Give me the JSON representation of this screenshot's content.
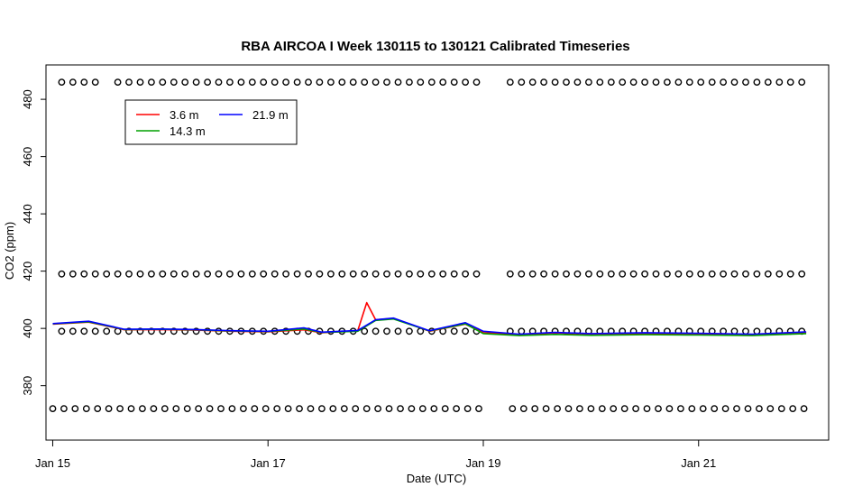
{
  "chart_data": {
    "type": "line",
    "title": "RBA AIRCOA I  Week 130115 to 130121  Calibrated Timeseries",
    "xlabel": "Date (UTC)",
    "ylabel": "CO2 (ppm)",
    "x_ticks": [
      "Jan 15",
      "Jan 17",
      "Jan 19",
      "Jan 21"
    ],
    "y_ticks": [
      "380",
      "400",
      "420",
      "440",
      "460",
      "480"
    ],
    "xlim": [
      "2013-01-14 22:30",
      "2013-01-22 05:00"
    ],
    "ylim": [
      361,
      492
    ],
    "grid": false,
    "legend_position": "top-left",
    "series": [
      {
        "name": "3.6 m",
        "color": "#ff0000",
        "x": [
          "2013-01-15 00:00",
          "2013-01-15 08:00",
          "2013-01-15 16:00",
          "2013-01-16 00:00",
          "2013-01-16 08:00",
          "2013-01-16 16:00",
          "2013-01-17 00:00",
          "2013-01-17 08:00",
          "2013-01-17 12:00",
          "2013-01-17 20:00",
          "2013-01-17 22:00",
          "2013-01-18 00:00",
          "2013-01-18 04:00",
          "2013-01-18 12:00",
          "2013-01-18 20:00",
          "2013-01-19 00:00",
          "2013-01-19 08:00",
          "2013-01-19 16:00",
          "2013-01-20 00:00",
          "2013-01-20 12:00",
          "2013-01-21 00:00",
          "2013-01-21 12:00",
          "2013-01-22 00:00"
        ],
        "values": [
          401.5,
          402.2,
          399.5,
          399.6,
          399.4,
          399.0,
          398.8,
          399.5,
          398.5,
          399.2,
          409.0,
          403.0,
          403.5,
          399.0,
          401.5,
          398.5,
          397.8,
          398.4,
          398.0,
          398.3,
          398.1,
          397.9,
          398.6
        ]
      },
      {
        "name": "14.3 m",
        "color": "#00a000",
        "x": [
          "2013-01-15 00:00",
          "2013-01-15 08:00",
          "2013-01-15 16:00",
          "2013-01-16 00:00",
          "2013-01-16 08:00",
          "2013-01-16 16:00",
          "2013-01-17 00:00",
          "2013-01-17 08:00",
          "2013-01-17 12:00",
          "2013-01-17 20:00",
          "2013-01-18 00:00",
          "2013-01-18 04:00",
          "2013-01-18 12:00",
          "2013-01-18 20:00",
          "2013-01-19 00:00",
          "2013-01-19 08:00",
          "2013-01-19 16:00",
          "2013-01-20 00:00",
          "2013-01-20 12:00",
          "2013-01-21 00:00",
          "2013-01-21 12:00",
          "2013-01-22 00:00"
        ],
        "values": [
          401.6,
          402.3,
          399.6,
          399.7,
          399.5,
          399.1,
          398.9,
          399.8,
          398.6,
          399.0,
          402.8,
          403.3,
          399.1,
          401.6,
          398.2,
          397.5,
          397.9,
          397.6,
          397.8,
          397.7,
          397.5,
          398.2
        ]
      },
      {
        "name": "21.9 m",
        "color": "#0000ff",
        "x": [
          "2013-01-15 00:00",
          "2013-01-15 08:00",
          "2013-01-15 16:00",
          "2013-01-16 00:00",
          "2013-01-16 08:00",
          "2013-01-16 16:00",
          "2013-01-17 00:00",
          "2013-01-17 08:00",
          "2013-01-17 12:00",
          "2013-01-17 20:00",
          "2013-01-18 00:00",
          "2013-01-18 04:00",
          "2013-01-18 12:00",
          "2013-01-18 20:00",
          "2013-01-19 00:00",
          "2013-01-19 08:00",
          "2013-01-19 16:00",
          "2013-01-20 00:00",
          "2013-01-20 12:00",
          "2013-01-21 00:00",
          "2013-01-21 12:00",
          "2013-01-22 00:00"
        ],
        "values": [
          401.7,
          402.5,
          399.7,
          399.8,
          399.6,
          399.2,
          399.0,
          400.2,
          398.7,
          399.3,
          403.0,
          403.6,
          399.2,
          402.0,
          399.0,
          398.0,
          398.6,
          398.2,
          398.5,
          398.3,
          398.0,
          398.8
        ]
      }
    ],
    "reference_points": {
      "marker": "open-circle",
      "groups": [
        {
          "value": 486,
          "x_start": "2013-01-15 02:00",
          "x_end": "2013-01-22 00:00",
          "interval_hours": 2.5,
          "gaps": [
            [
              "2013-01-15 11:00",
              "2013-01-15 14:00"
            ],
            [
              "2013-01-19 01:00",
              "2013-01-19 04:00"
            ]
          ]
        },
        {
          "value": 419,
          "x_start": "2013-01-15 02:00",
          "x_end": "2013-01-22 00:00",
          "interval_hours": 2.5,
          "gaps": [
            [
              "2013-01-19 01:00",
              "2013-01-19 04:00"
            ]
          ]
        },
        {
          "value": 399,
          "x_start": "2013-01-15 02:00",
          "x_end": "2013-01-22 00:00",
          "interval_hours": 2.5,
          "gaps": [
            [
              "2013-01-19 01:00",
              "2013-01-19 04:00"
            ]
          ]
        },
        {
          "value": 372,
          "x_start": "2013-01-15 00:00",
          "x_end": "2013-01-22 00:00",
          "interval_hours": 2.5,
          "gaps": [
            [
              "2013-01-19 01:00",
              "2013-01-19 04:00"
            ]
          ]
        }
      ]
    }
  }
}
